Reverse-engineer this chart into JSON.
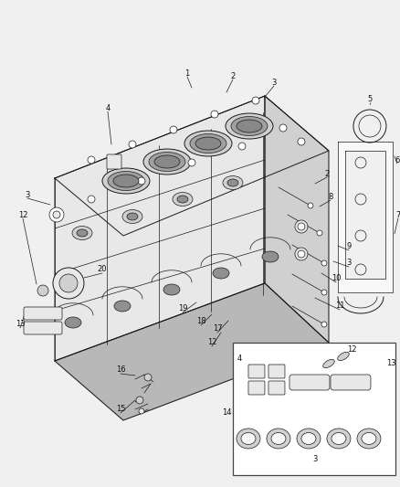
{
  "bg_color": "#f0f0f0",
  "fig_width": 4.38,
  "fig_height": 5.33,
  "dpi": 100,
  "line_color": "#1a1a1a",
  "fill_light": "#f8f8f8",
  "fill_mid": "#e8e8e8",
  "fill_dark": "#d0d0d0",
  "fill_darker": "#b8b8b8",
  "label_color": "#111111",
  "label_fontsize": 6.0
}
